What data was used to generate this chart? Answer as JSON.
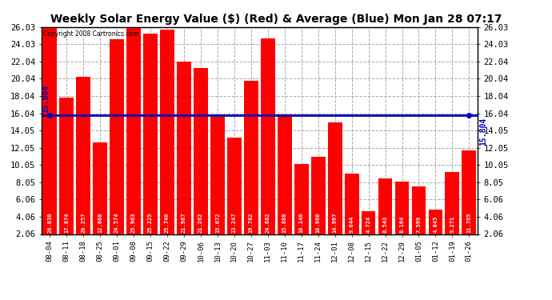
{
  "title": "Weekly Solar Energy Value ($) (Red) & Average (Blue) Mon Jan 28 07:17",
  "copyright": "Copyright 2008 Cartronics.com",
  "categories": [
    "08-04",
    "08-11",
    "08-18",
    "08-25",
    "09-01",
    "09-08",
    "09-15",
    "09-22",
    "09-29",
    "10-06",
    "10-13",
    "10-20",
    "10-27",
    "11-03",
    "11-10",
    "11-17",
    "11-24",
    "12-01",
    "12-08",
    "12-15",
    "12-22",
    "12-29",
    "01-05",
    "01-12",
    "01-19",
    "01-26"
  ],
  "values": [
    26.03,
    17.874,
    20.257,
    12.668,
    24.574,
    25.963,
    25.225,
    25.74,
    21.987,
    21.262,
    15.672,
    13.247,
    19.782,
    24.682,
    15.888,
    10.14,
    10.96,
    14.997,
    9.044,
    4.724,
    8.543,
    8.164,
    7.599,
    4.845,
    9.271,
    11.765
  ],
  "average": 15.804,
  "bar_color": "#FF0000",
  "avg_line_color": "#0000BB",
  "background_color": "#FFFFFF",
  "plot_bg_color": "#FFFFFF",
  "grid_color": "#AAAAAA",
  "ylim_min": 2.06,
  "ylim_max": 26.03,
  "yticks": [
    2.06,
    4.06,
    6.06,
    8.05,
    10.05,
    12.05,
    14.05,
    16.04,
    18.04,
    20.04,
    22.04,
    24.03,
    26.03
  ],
  "title_fontsize": 10,
  "bar_value_fontsize": 5.0,
  "avg_label": "15.804",
  "avg_fontsize": 7.0,
  "tick_fontsize": 7.5,
  "xlabel_fontsize": 6.5
}
